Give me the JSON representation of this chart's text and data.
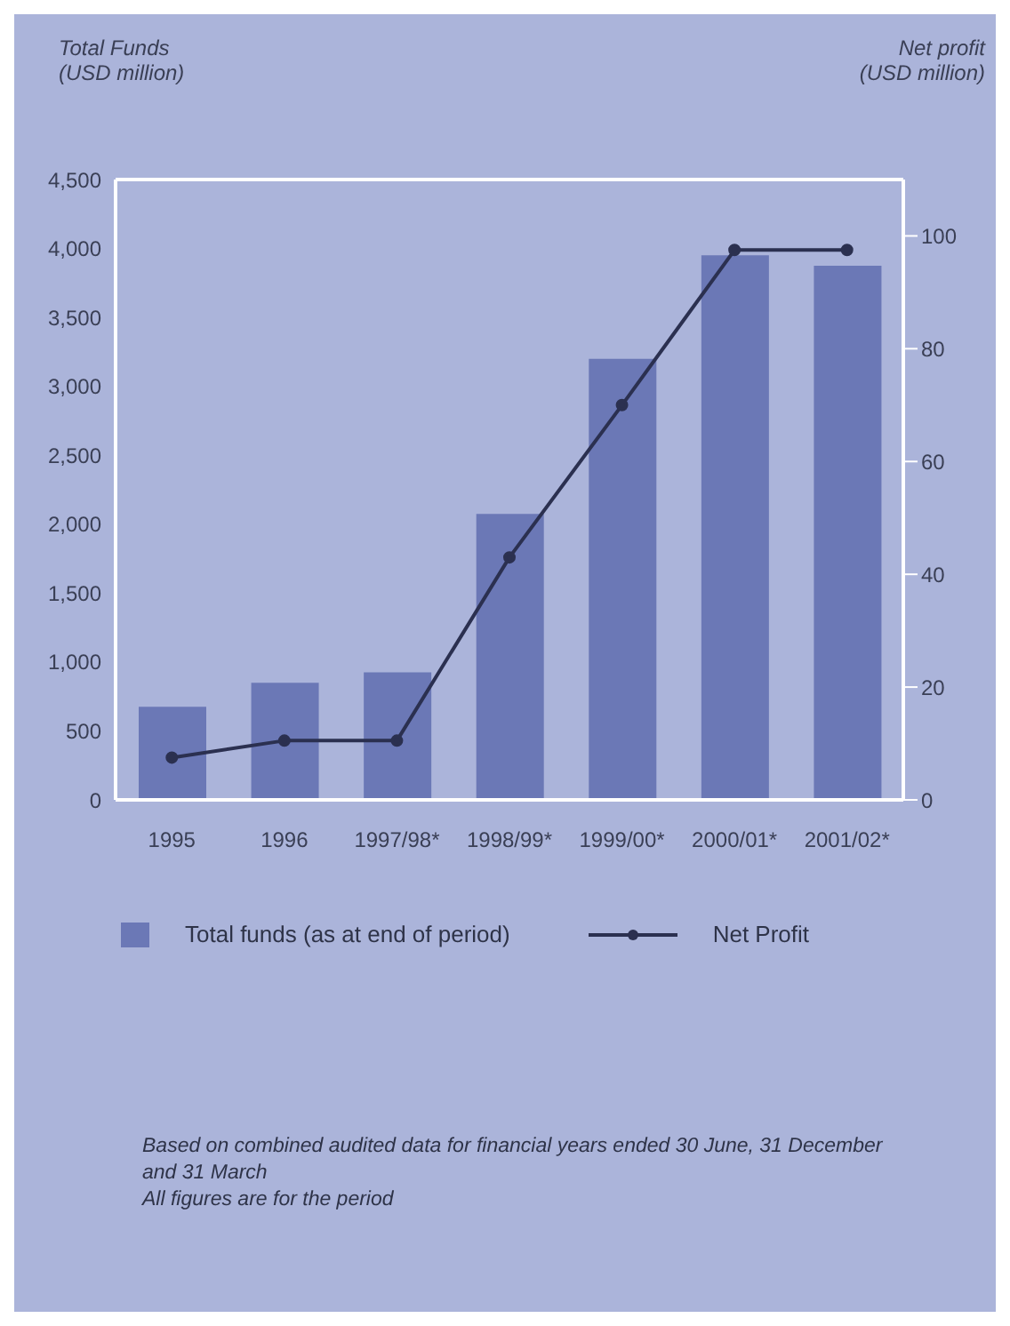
{
  "chart_data": {
    "type": "bar",
    "ylabel": "Total Funds (USD million)",
    "y2label": "Net profit (USD million)",
    "categories": [
      "1995",
      "1996",
      "1997/98*",
      "1998/99*",
      "1999/00*",
      "2000/01*",
      "2001/02*"
    ],
    "series": [
      {
        "name": "Total funds (as at end of period)",
        "color": "#6b78b6",
        "values": [
          675,
          850,
          925,
          2075,
          3200,
          3950,
          3875
        ]
      },
      {
        "name": "Net Profit",
        "type": "line",
        "axis": "y2",
        "color": "#2b3050",
        "values": [
          7.5,
          10.5,
          10.5,
          43,
          70,
          97.5,
          97.5
        ]
      }
    ],
    "ylim": [
      0,
      4500
    ],
    "yticks": [
      {
        "value": 0,
        "label": "0"
      },
      {
        "value": 500,
        "label": "500"
      },
      {
        "value": 1000,
        "label": "1,000"
      },
      {
        "value": 1500,
        "label": "1,500"
      },
      {
        "value": 2000,
        "label": "2,000"
      },
      {
        "value": 2500,
        "label": "2,500"
      },
      {
        "value": 3000,
        "label": "3,000"
      },
      {
        "value": 3500,
        "label": "3,500"
      },
      {
        "value": 4000,
        "label": "4,000"
      },
      {
        "value": 4500,
        "label": "4,500"
      }
    ],
    "y2lim": [
      0,
      110
    ],
    "y2ticks": [
      0,
      20,
      40,
      60,
      80,
      100
    ],
    "legend": "bottom",
    "marker": "circle",
    "line_style": "solid",
    "grid": false,
    "annotations": [
      "Based on combined audited data for financial years ended 30 June, 31 December and 31 March",
      "All figures are for the period"
    ]
  }
}
